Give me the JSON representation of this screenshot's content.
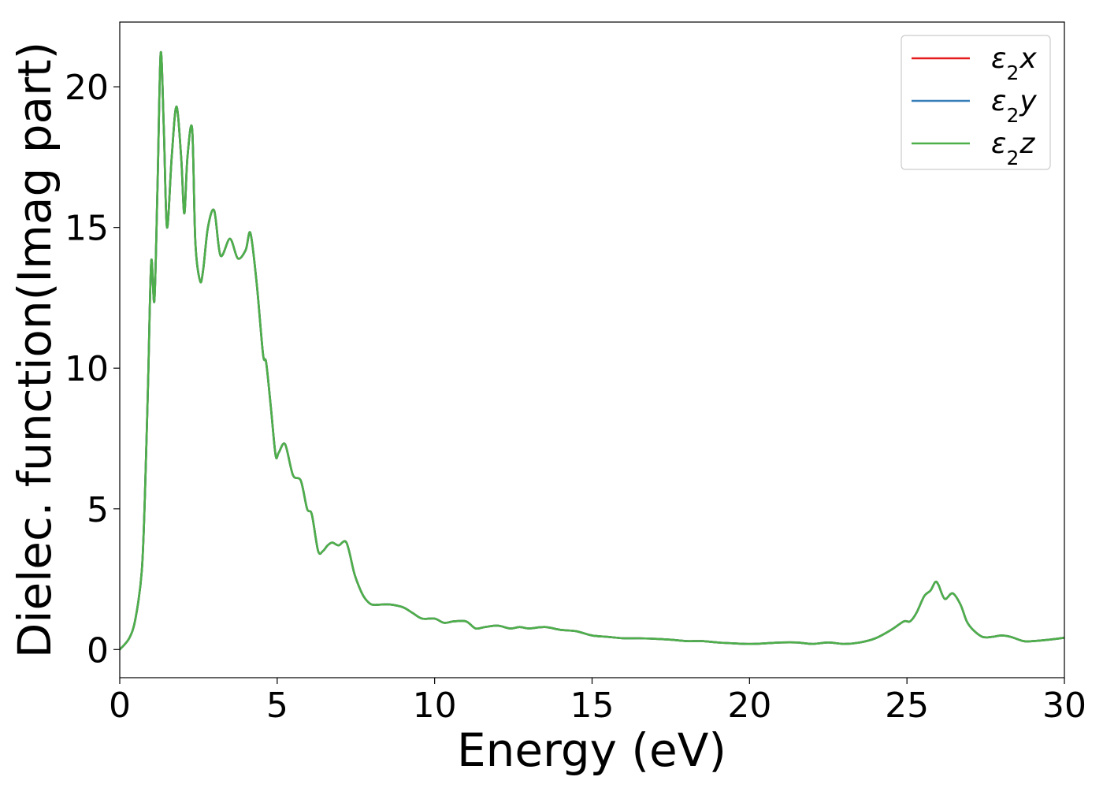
{
  "chart_data": {
    "type": "line",
    "title": "",
    "xlabel": "Energy (eV)",
    "ylabel": "Dielec. function(Imag part)",
    "xlim": [
      0,
      30
    ],
    "ylim": [
      -1,
      22.3
    ],
    "xticks": [
      0,
      5,
      10,
      15,
      20,
      25,
      30
    ],
    "yticks": [
      0,
      5,
      10,
      15,
      20
    ],
    "grid": false,
    "legend_position": "top-right",
    "x": [
      0,
      0.3,
      0.5,
      0.7,
      0.8,
      0.9,
      1.0,
      1.1,
      1.2,
      1.3,
      1.4,
      1.5,
      1.65,
      1.8,
      1.95,
      2.05,
      2.15,
      2.3,
      2.4,
      2.55,
      2.65,
      2.8,
      3.0,
      3.2,
      3.5,
      3.75,
      4.0,
      4.15,
      4.35,
      4.55,
      4.65,
      4.8,
      4.95,
      5.05,
      5.25,
      5.5,
      5.75,
      5.95,
      6.1,
      6.3,
      6.45,
      6.6,
      6.75,
      6.95,
      7.2,
      7.45,
      7.65,
      7.8,
      8.0,
      8.3,
      8.6,
      9.0,
      9.3,
      9.6,
      10.0,
      10.3,
      10.6,
      11.0,
      11.3,
      11.6,
      12.0,
      12.4,
      12.7,
      13.0,
      13.5,
      14.0,
      14.5,
      15.0,
      15.5,
      16.0,
      16.5,
      17.0,
      17.5,
      18.0,
      18.5,
      19.0,
      19.5,
      20.0,
      20.5,
      21.0,
      21.5,
      22.0,
      22.5,
      23.0,
      23.5,
      24.0,
      24.5,
      24.9,
      25.1,
      25.3,
      25.55,
      25.75,
      25.9,
      26.0,
      26.2,
      26.45,
      26.7,
      26.9,
      27.1,
      27.4,
      27.7,
      28.0,
      28.3,
      28.7,
      29.0,
      29.5,
      30.0
    ],
    "series": [
      {
        "name": "ε₂x",
        "color": "#e41a1c",
        "values": [
          0.0,
          0.4,
          1.1,
          2.8,
          5.5,
          9.5,
          13.8,
          12.4,
          16.5,
          21.2,
          18.5,
          15.0,
          17.5,
          19.3,
          17.5,
          15.5,
          17.5,
          18.5,
          14.5,
          13.1,
          13.5,
          15.0,
          15.6,
          14.0,
          14.6,
          13.9,
          14.2,
          14.8,
          13.0,
          10.5,
          10.2,
          8.6,
          6.9,
          7.0,
          7.3,
          6.2,
          6.0,
          5.0,
          4.8,
          3.5,
          3.5,
          3.7,
          3.8,
          3.7,
          3.8,
          2.7,
          2.1,
          1.8,
          1.6,
          1.6,
          1.6,
          1.5,
          1.3,
          1.1,
          1.1,
          0.95,
          1.0,
          1.0,
          0.75,
          0.8,
          0.85,
          0.75,
          0.8,
          0.75,
          0.8,
          0.7,
          0.65,
          0.5,
          0.45,
          0.4,
          0.4,
          0.38,
          0.35,
          0.3,
          0.3,
          0.25,
          0.22,
          0.2,
          0.22,
          0.25,
          0.25,
          0.2,
          0.25,
          0.2,
          0.25,
          0.4,
          0.7,
          1.0,
          1.0,
          1.3,
          1.9,
          2.1,
          2.4,
          2.3,
          1.8,
          2.0,
          1.6,
          1.0,
          0.7,
          0.45,
          0.45,
          0.5,
          0.45,
          0.3,
          0.3,
          0.35,
          0.42
        ]
      },
      {
        "name": "ε₂y",
        "color": "#377eb8",
        "values": [
          0.0,
          0.4,
          1.1,
          2.8,
          5.5,
          9.5,
          13.8,
          12.4,
          16.5,
          21.2,
          18.5,
          15.0,
          17.5,
          19.3,
          17.5,
          15.5,
          17.5,
          18.5,
          14.5,
          13.1,
          13.5,
          15.0,
          15.6,
          14.0,
          14.6,
          13.9,
          14.2,
          14.8,
          13.0,
          10.5,
          10.2,
          8.6,
          6.9,
          7.0,
          7.3,
          6.2,
          6.0,
          5.0,
          4.8,
          3.5,
          3.5,
          3.7,
          3.8,
          3.7,
          3.8,
          2.7,
          2.1,
          1.8,
          1.6,
          1.6,
          1.6,
          1.5,
          1.3,
          1.1,
          1.1,
          0.95,
          1.0,
          1.0,
          0.75,
          0.8,
          0.85,
          0.75,
          0.8,
          0.75,
          0.8,
          0.7,
          0.65,
          0.5,
          0.45,
          0.4,
          0.4,
          0.38,
          0.35,
          0.3,
          0.3,
          0.25,
          0.22,
          0.2,
          0.22,
          0.25,
          0.25,
          0.2,
          0.25,
          0.2,
          0.25,
          0.4,
          0.7,
          1.0,
          1.0,
          1.3,
          1.9,
          2.1,
          2.4,
          2.3,
          1.8,
          2.0,
          1.6,
          1.0,
          0.7,
          0.45,
          0.45,
          0.5,
          0.45,
          0.3,
          0.3,
          0.35,
          0.42
        ]
      },
      {
        "name": "ε₂z",
        "color": "#4daf4a",
        "values": [
          0.0,
          0.4,
          1.1,
          2.8,
          5.5,
          9.5,
          13.8,
          12.4,
          16.5,
          21.2,
          18.5,
          15.0,
          17.5,
          19.3,
          17.5,
          15.5,
          17.5,
          18.5,
          14.5,
          13.1,
          13.5,
          15.0,
          15.6,
          14.0,
          14.6,
          13.9,
          14.2,
          14.8,
          13.0,
          10.5,
          10.2,
          8.6,
          6.9,
          7.0,
          7.3,
          6.2,
          6.0,
          5.0,
          4.8,
          3.5,
          3.5,
          3.7,
          3.8,
          3.7,
          3.8,
          2.7,
          2.1,
          1.8,
          1.6,
          1.6,
          1.6,
          1.5,
          1.3,
          1.1,
          1.1,
          0.95,
          1.0,
          1.0,
          0.75,
          0.8,
          0.85,
          0.75,
          0.8,
          0.75,
          0.8,
          0.7,
          0.65,
          0.5,
          0.45,
          0.4,
          0.4,
          0.38,
          0.35,
          0.3,
          0.3,
          0.25,
          0.22,
          0.2,
          0.22,
          0.25,
          0.25,
          0.2,
          0.25,
          0.2,
          0.25,
          0.4,
          0.7,
          1.0,
          1.0,
          1.3,
          1.9,
          2.1,
          2.4,
          2.3,
          1.8,
          2.0,
          1.6,
          1.0,
          0.7,
          0.45,
          0.45,
          0.5,
          0.45,
          0.3,
          0.3,
          0.35,
          0.42
        ]
      }
    ],
    "legend": [
      {
        "base": "ε",
        "sub": "2",
        "axis": "x",
        "color": "#e41a1c"
      },
      {
        "base": "ε",
        "sub": "2",
        "axis": "y",
        "color": "#377eb8"
      },
      {
        "base": "ε",
        "sub": "2",
        "axis": "z",
        "color": "#4daf4a"
      }
    ]
  }
}
